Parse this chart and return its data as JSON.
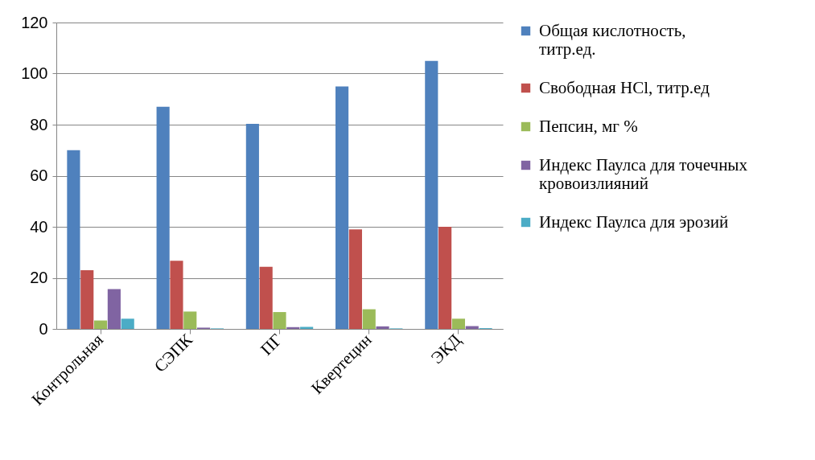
{
  "chart_data": {
    "type": "bar",
    "categories": [
      "Контрольная",
      "СЭПК",
      "ПГ",
      "Квертецин",
      "ЭКД"
    ],
    "series": [
      {
        "name": "Общая кислотность, титр.ед.",
        "color": "#4f81bd",
        "values": [
          70,
          87,
          80.3,
          95,
          105
        ]
      },
      {
        "name": "Свободная HCl,   титр.ед",
        "color": "#c0504d",
        "values": [
          23,
          26.7,
          24.3,
          39,
          40
        ]
      },
      {
        "name": "Пепсин,   мг %",
        "color": "#9bbb59",
        "values": [
          3.3,
          6.8,
          6.6,
          7.7,
          4
        ]
      },
      {
        "name": "Индекс Паулса для точечных кровоизлияний",
        "color": "#8064a2",
        "values": [
          15.6,
          0.5,
          0.7,
          1,
          1.1
        ]
      },
      {
        "name": "Индекс Паулса для эрозий",
        "color": "#4bacc6",
        "values": [
          4,
          0.2,
          0.8,
          0.2,
          0.3
        ]
      }
    ],
    "ylim": [
      0,
      120
    ],
    "yticks": [
      0,
      20,
      40,
      60,
      80,
      100,
      120
    ],
    "grid": "y",
    "legend": "right"
  }
}
